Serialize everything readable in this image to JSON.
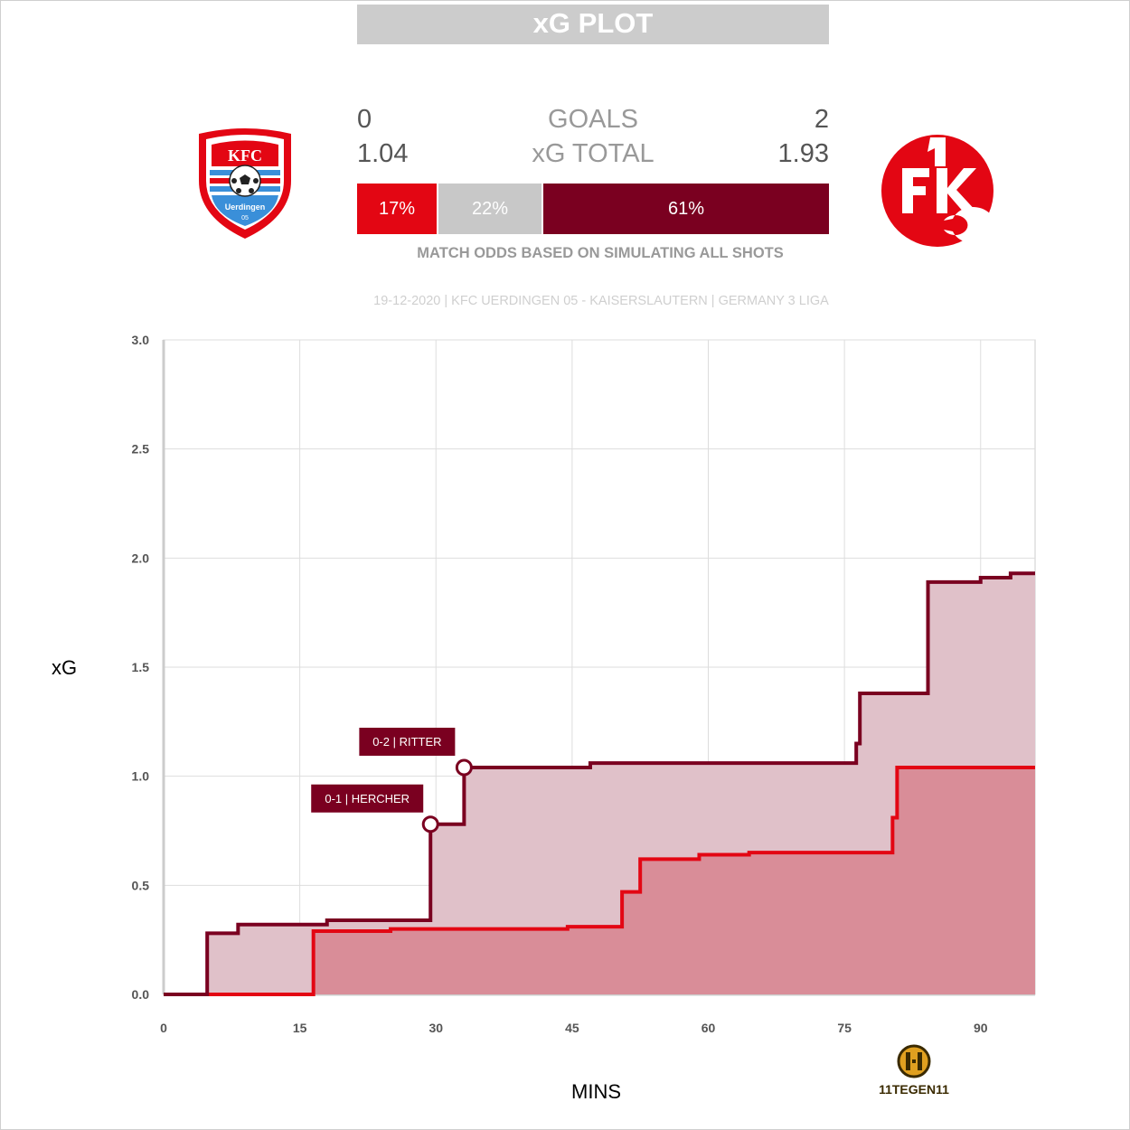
{
  "header": {
    "title": "xG PLOT"
  },
  "home": {
    "name": "KFC Uerdingen 05",
    "logo_text": "KFC",
    "logo_sub": "Uerdingen",
    "logo_year": "05",
    "goals": "0",
    "xg_total": "1.04",
    "color": "#e30613"
  },
  "away": {
    "name": "Kaiserslautern",
    "logo_text": "1FCK",
    "goals": "2",
    "xg_total": "1.93",
    "color": "#7a0020"
  },
  "labels": {
    "goals": "GOALS",
    "xg_total": "xG TOTAL"
  },
  "odds": {
    "home_win": "17%",
    "draw": "22%",
    "away_win": "61%",
    "home_value": 0.17,
    "draw_value": 0.22,
    "away_value": 0.61,
    "colors": {
      "home": "#e30613",
      "draw": "#c8c8c8",
      "away": "#7a0020"
    },
    "note": "MATCH ODDS BASED ON SIMULATING ALL SHOTS"
  },
  "match_info": "19-12-2020 | KFC UERDINGEN 05 - KAISERSLAUTERN | GERMANY 3 LIGA",
  "branding": {
    "name": "11TEGEN11",
    "color": "#e0a020"
  },
  "chart_data": {
    "type": "line",
    "xlabel": "MINS",
    "ylabel": "xG",
    "xlim": [
      0,
      96
    ],
    "ylim": [
      0,
      3
    ],
    "xticks": [
      0,
      15,
      30,
      45,
      60,
      75,
      90
    ],
    "yticks": [
      "0.0",
      "0.5",
      "1.0",
      "1.5",
      "2.0",
      "2.5",
      "3.0"
    ],
    "grid": true,
    "series": [
      {
        "team": "KFC Uerdingen 05",
        "color": "#e30613",
        "fill": "#d98d98",
        "x": [
          0,
          16.5,
          25,
          44.5,
          50.5,
          52.5,
          59,
          64.5,
          80.3,
          80.8,
          90,
          96
        ],
        "y": [
          0,
          0.29,
          0.3,
          0.31,
          0.47,
          0.62,
          0.64,
          0.65,
          0.81,
          1.04,
          1.04,
          1.04
        ]
      },
      {
        "team": "Kaiserslautern",
        "color": "#7a0020",
        "fill": "#e0c1c9",
        "x": [
          0,
          4.8,
          8.2,
          18,
          29.4,
          33.1,
          47,
          76.3,
          76.7,
          84.2,
          90,
          93.3,
          96
        ],
        "y": [
          0,
          0.28,
          0.32,
          0.34,
          0.78,
          1.04,
          1.06,
          1.15,
          1.38,
          1.89,
          1.91,
          1.93,
          1.93
        ]
      }
    ],
    "annotations": [
      {
        "text": "0-1 | HERCHER",
        "x": 29.4,
        "y": 0.78
      },
      {
        "text": "0-2 | RITTER",
        "x": 33.1,
        "y": 1.04
      }
    ]
  }
}
